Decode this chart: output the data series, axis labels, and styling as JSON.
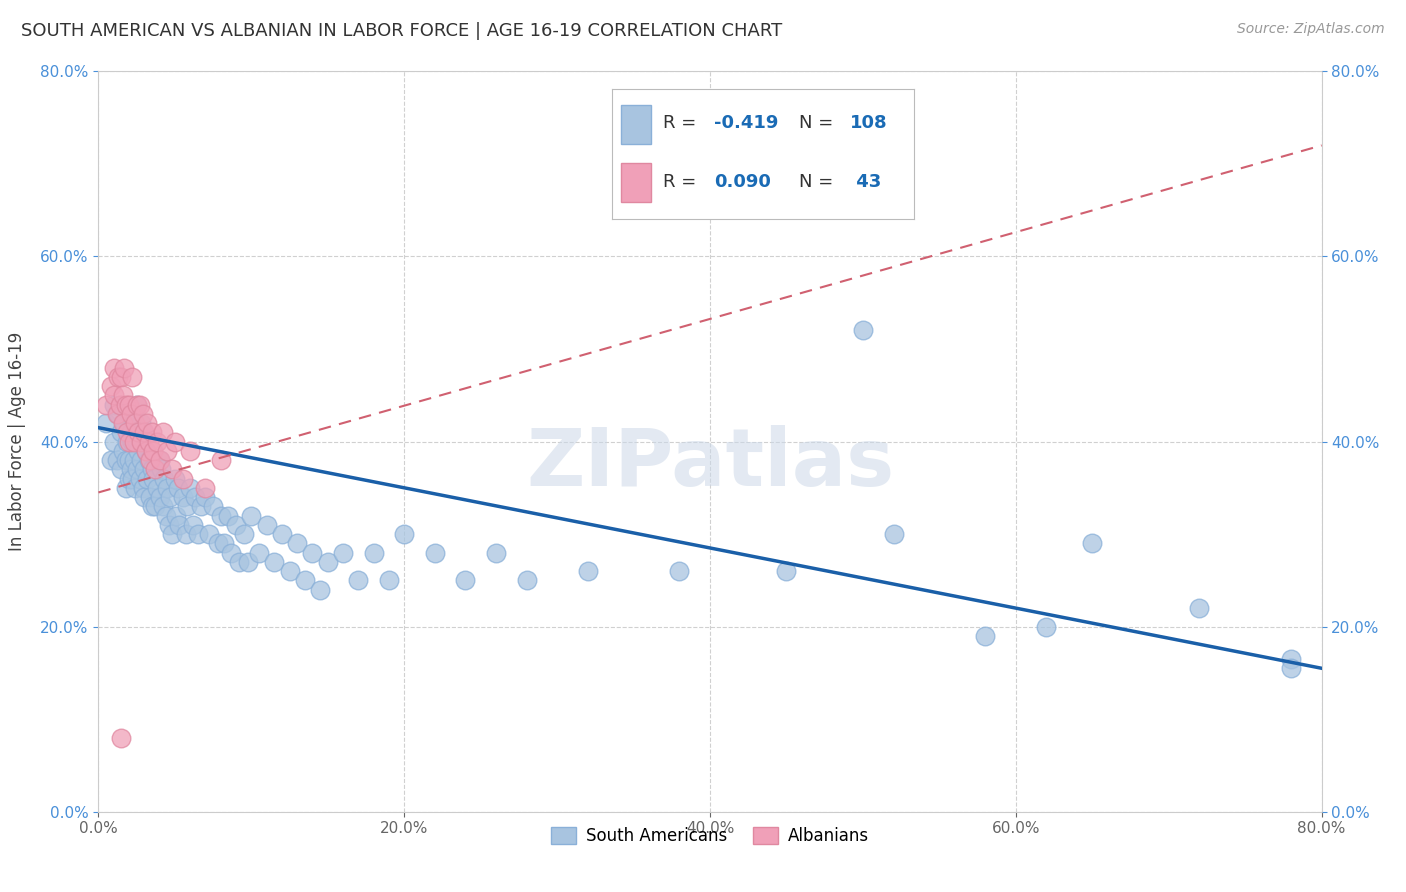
{
  "title": "SOUTH AMERICAN VS ALBANIAN IN LABOR FORCE | AGE 16-19 CORRELATION CHART",
  "source_text": "Source: ZipAtlas.com",
  "ylabel": "In Labor Force | Age 16-19",
  "xlim": [
    0.0,
    0.8
  ],
  "ylim": [
    0.0,
    0.8
  ],
  "xticks": [
    0.0,
    0.2,
    0.4,
    0.6,
    0.8
  ],
  "yticks": [
    0.0,
    0.2,
    0.4,
    0.6,
    0.8
  ],
  "south_american_color": "#a8c4e0",
  "albanian_color": "#f0a0b8",
  "trend_sa_color": "#1a5fa8",
  "trend_alb_color": "#d06070",
  "sa_R": -0.419,
  "sa_N": 108,
  "alb_R": 0.09,
  "alb_N": 43,
  "watermark": "ZIPatlas",
  "grid_color": "#d0d0d0",
  "background_color": "#ffffff",
  "ytick_color": "#4a90d9",
  "xtick_color": "#666666",
  "sa_trend_x0": 0.0,
  "sa_trend_y0": 0.415,
  "sa_trend_x1": 0.8,
  "sa_trend_y1": 0.155,
  "alb_trend_x0": 0.0,
  "alb_trend_y0": 0.345,
  "alb_trend_x1": 0.8,
  "alb_trend_y1": 0.72,
  "south_americans_x": [
    0.005,
    0.008,
    0.01,
    0.01,
    0.012,
    0.013,
    0.015,
    0.015,
    0.016,
    0.017,
    0.018,
    0.018,
    0.019,
    0.02,
    0.02,
    0.02,
    0.021,
    0.021,
    0.022,
    0.022,
    0.023,
    0.023,
    0.024,
    0.025,
    0.025,
    0.025,
    0.026,
    0.027,
    0.028,
    0.028,
    0.029,
    0.03,
    0.03,
    0.03,
    0.031,
    0.032,
    0.033,
    0.034,
    0.035,
    0.035,
    0.036,
    0.037,
    0.038,
    0.04,
    0.04,
    0.041,
    0.042,
    0.043,
    0.044,
    0.045,
    0.046,
    0.047,
    0.048,
    0.05,
    0.051,
    0.052,
    0.053,
    0.055,
    0.057,
    0.058,
    0.06,
    0.062,
    0.063,
    0.065,
    0.067,
    0.07,
    0.072,
    0.075,
    0.078,
    0.08,
    0.082,
    0.085,
    0.087,
    0.09,
    0.092,
    0.095,
    0.098,
    0.1,
    0.105,
    0.11,
    0.115,
    0.12,
    0.125,
    0.13,
    0.135,
    0.14,
    0.145,
    0.15,
    0.16,
    0.17,
    0.18,
    0.19,
    0.2,
    0.22,
    0.24,
    0.26,
    0.28,
    0.32,
    0.38,
    0.45,
    0.5,
    0.52,
    0.58,
    0.62,
    0.65,
    0.72,
    0.78,
    0.78
  ],
  "south_americans_y": [
    0.42,
    0.38,
    0.44,
    0.4,
    0.38,
    0.43,
    0.41,
    0.37,
    0.39,
    0.42,
    0.38,
    0.35,
    0.4,
    0.43,
    0.38,
    0.36,
    0.41,
    0.37,
    0.4,
    0.36,
    0.42,
    0.38,
    0.35,
    0.44,
    0.4,
    0.37,
    0.39,
    0.36,
    0.42,
    0.38,
    0.35,
    0.41,
    0.37,
    0.34,
    0.39,
    0.36,
    0.38,
    0.34,
    0.37,
    0.33,
    0.36,
    0.33,
    0.35,
    0.38,
    0.34,
    0.37,
    0.33,
    0.36,
    0.32,
    0.35,
    0.31,
    0.34,
    0.3,
    0.36,
    0.32,
    0.35,
    0.31,
    0.34,
    0.3,
    0.33,
    0.35,
    0.31,
    0.34,
    0.3,
    0.33,
    0.34,
    0.3,
    0.33,
    0.29,
    0.32,
    0.29,
    0.32,
    0.28,
    0.31,
    0.27,
    0.3,
    0.27,
    0.32,
    0.28,
    0.31,
    0.27,
    0.3,
    0.26,
    0.29,
    0.25,
    0.28,
    0.24,
    0.27,
    0.28,
    0.25,
    0.28,
    0.25,
    0.3,
    0.28,
    0.25,
    0.28,
    0.25,
    0.26,
    0.26,
    0.26,
    0.52,
    0.3,
    0.19,
    0.2,
    0.29,
    0.22,
    0.165,
    0.155
  ],
  "albanians_x": [
    0.005,
    0.008,
    0.01,
    0.01,
    0.012,
    0.013,
    0.014,
    0.015,
    0.016,
    0.016,
    0.017,
    0.018,
    0.019,
    0.02,
    0.02,
    0.021,
    0.022,
    0.023,
    0.024,
    0.025,
    0.026,
    0.027,
    0.028,
    0.029,
    0.03,
    0.031,
    0.032,
    0.033,
    0.034,
    0.035,
    0.036,
    0.037,
    0.038,
    0.04,
    0.042,
    0.045,
    0.048,
    0.05,
    0.055,
    0.06,
    0.07,
    0.08,
    0.015
  ],
  "albanians_y": [
    0.44,
    0.46,
    0.48,
    0.45,
    0.43,
    0.47,
    0.44,
    0.47,
    0.45,
    0.42,
    0.48,
    0.44,
    0.41,
    0.44,
    0.4,
    0.43,
    0.47,
    0.4,
    0.42,
    0.44,
    0.41,
    0.44,
    0.4,
    0.43,
    0.41,
    0.39,
    0.42,
    0.4,
    0.38,
    0.41,
    0.39,
    0.37,
    0.4,
    0.38,
    0.41,
    0.39,
    0.37,
    0.4,
    0.36,
    0.39,
    0.35,
    0.38,
    0.08
  ]
}
